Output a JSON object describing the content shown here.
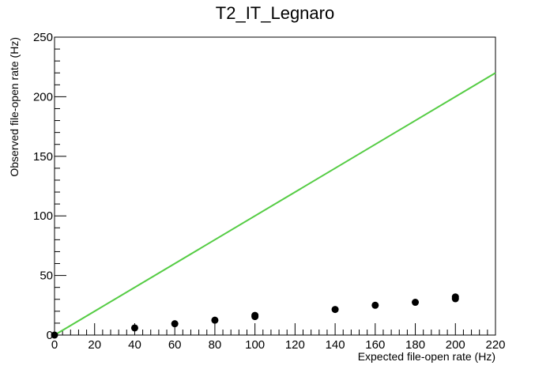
{
  "chart_data": {
    "type": "scatter",
    "title": "T2_IT_Legnaro",
    "xlabel": "Expected file-open rate (Hz)",
    "ylabel": "Observed file-open rate (Hz)",
    "xlim": [
      0,
      220
    ],
    "ylim": [
      0,
      250
    ],
    "xticks": [
      0,
      20,
      40,
      60,
      80,
      100,
      120,
      140,
      160,
      180,
      200,
      220
    ],
    "yticks": [
      0,
      50,
      100,
      150,
      200,
      250
    ],
    "grid": false,
    "legend": "none",
    "series": [
      {
        "kind": "scatter",
        "color": "#000000",
        "points": [
          {
            "x": 0,
            "y": 0
          },
          {
            "x": 40,
            "y": 6
          },
          {
            "x": 60,
            "y": 9.5
          },
          {
            "x": 80,
            "y": 12.5
          },
          {
            "x": 100,
            "y": 15.5
          },
          {
            "x": 100,
            "y": 16.5
          },
          {
            "x": 140,
            "y": 21.5
          },
          {
            "x": 160,
            "y": 25
          },
          {
            "x": 180,
            "y": 27.5
          },
          {
            "x": 200,
            "y": 30.5
          },
          {
            "x": 200,
            "y": 32
          }
        ]
      },
      {
        "kind": "line",
        "color": "#55cc44",
        "points": [
          {
            "x": 0,
            "y": 0
          },
          {
            "x": 220,
            "y": 220
          }
        ]
      }
    ]
  }
}
